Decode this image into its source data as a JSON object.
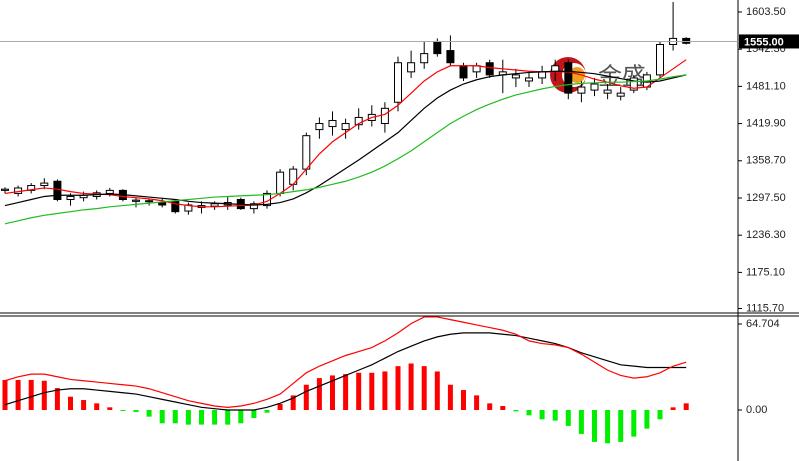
{
  "chart_data": [
    {
      "type": "candlestick",
      "open": [
        1310,
        1305,
        1310,
        1318,
        1325,
        1295,
        1298,
        1300,
        1305,
        1310,
        1292,
        1292,
        1290,
        1292,
        1276,
        1282,
        1284,
        1286,
        1295,
        1280,
        1285,
        1305,
        1320,
        1345,
        1410,
        1415,
        1410,
        1418,
        1425,
        1420,
        1455,
        1505,
        1520,
        1555,
        1540,
        1515,
        1505,
        1520,
        1500,
        1495,
        1490,
        1495,
        1505,
        1520,
        1470,
        1475,
        1470,
        1465,
        1475,
        1480,
        1500,
        1550,
        1560
      ],
      "high": [
        1315,
        1318,
        1322,
        1330,
        1328,
        1305,
        1308,
        1310,
        1314,
        1312,
        1298,
        1296,
        1298,
        1295,
        1290,
        1292,
        1292,
        1300,
        1298,
        1292,
        1310,
        1345,
        1350,
        1405,
        1430,
        1440,
        1428,
        1445,
        1450,
        1455,
        1530,
        1540,
        1555,
        1560,
        1565,
        1520,
        1520,
        1525,
        1525,
        1510,
        1505,
        1515,
        1525,
        1525,
        1490,
        1495,
        1485,
        1480,
        1500,
        1505,
        1555,
        1620,
        1562
      ],
      "low": [
        1305,
        1300,
        1305,
        1312,
        1292,
        1285,
        1292,
        1295,
        1300,
        1292,
        1282,
        1285,
        1282,
        1272,
        1270,
        1272,
        1278,
        1278,
        1278,
        1272,
        1280,
        1300,
        1310,
        1335,
        1395,
        1400,
        1395,
        1410,
        1415,
        1405,
        1440,
        1495,
        1510,
        1530,
        1515,
        1490,
        1495,
        1495,
        1470,
        1480,
        1480,
        1485,
        1490,
        1460,
        1455,
        1465,
        1460,
        1458,
        1470,
        1475,
        1495,
        1540,
        1550
      ],
      "close": [
        1312,
        1314,
        1318,
        1322,
        1295,
        1300,
        1302,
        1306,
        1310,
        1295,
        1294,
        1293,
        1286,
        1275,
        1286,
        1285,
        1288,
        1290,
        1280,
        1288,
        1305,
        1340,
        1345,
        1400,
        1420,
        1425,
        1420,
        1430,
        1435,
        1445,
        1520,
        1520,
        1535,
        1535,
        1520,
        1495,
        1515,
        1500,
        1505,
        1500,
        1495,
        1505,
        1515,
        1470,
        1480,
        1485,
        1475,
        1470,
        1495,
        1500,
        1550,
        1560,
        1552
      ],
      "up_color": "#ffffff",
      "down_color": "#000000",
      "edge_color": "#000000",
      "lines": [
        {
          "color": "#ff0000",
          "values": [
            1305,
            1308,
            1311,
            1314,
            1312,
            1308,
            1305,
            1304,
            1303,
            1300,
            1298,
            1296,
            1293,
            1288,
            1285,
            1283,
            1283,
            1284,
            1285,
            1286,
            1292,
            1305,
            1320,
            1345,
            1370,
            1390,
            1405,
            1420,
            1430,
            1435,
            1450,
            1470,
            1490,
            1505,
            1515,
            1515,
            1515,
            1512,
            1510,
            1508,
            1506,
            1505,
            1505,
            1505,
            1500,
            1493,
            1488,
            1482,
            1478,
            1480,
            1495,
            1510,
            1525
          ]
        },
        {
          "color": "#000000",
          "values": [
            1285,
            1290,
            1295,
            1300,
            1302,
            1302,
            1302,
            1303,
            1304,
            1303,
            1301,
            1299,
            1297,
            1295,
            1292,
            1290,
            1289,
            1288,
            1287,
            1286,
            1287,
            1290,
            1296,
            1306,
            1318,
            1332,
            1346,
            1360,
            1375,
            1390,
            1405,
            1425,
            1445,
            1462,
            1475,
            1485,
            1492,
            1497,
            1500,
            1502,
            1504,
            1505,
            1506,
            1506,
            1504,
            1502,
            1498,
            1494,
            1490,
            1488,
            1490,
            1495,
            1500
          ]
        },
        {
          "color": "#22bb22",
          "values": [
            1255,
            1260,
            1265,
            1269,
            1272,
            1275,
            1278,
            1280,
            1283,
            1285,
            1287,
            1289,
            1291,
            1293,
            1295,
            1297,
            1299,
            1300,
            1301,
            1302,
            1303,
            1305,
            1308,
            1311,
            1315,
            1320,
            1325,
            1332,
            1340,
            1350,
            1362,
            1375,
            1390,
            1405,
            1420,
            1432,
            1443,
            1452,
            1460,
            1467,
            1472,
            1477,
            1481,
            1484,
            1486,
            1487,
            1488,
            1488,
            1489,
            1490,
            1493,
            1497,
            1500
          ]
        }
      ],
      "ylim": [
        1108.3,
        1623.2
      ],
      "yticks": [
        {
          "value": 1603.5,
          "label": "1603.50"
        },
        {
          "value": 1542.3,
          "label": "1542.30"
        },
        {
          "value": 1481.1,
          "label": "1481.10"
        },
        {
          "value": 1419.9,
          "label": "1419.90"
        },
        {
          "value": 1358.7,
          "label": "1358.70"
        },
        {
          "value": 1297.5,
          "label": "1297.50"
        },
        {
          "value": 1236.3,
          "label": "1236.30"
        },
        {
          "value": 1175.1,
          "label": "1175.10"
        },
        {
          "value": 1115.7,
          "label": "1115.70"
        }
      ],
      "current_price": {
        "value": 1555,
        "label": "1555.00"
      },
      "watermark": "金盛"
    },
    {
      "type": "bar",
      "values": [
        22.6,
        22.6,
        22.6,
        22,
        16.5,
        10,
        7.5,
        5,
        2,
        -0.5,
        -1.5,
        -5,
        -10,
        -10,
        -11,
        -11,
        -11,
        -11,
        -10,
        -6,
        -2,
        4.5,
        11,
        19,
        24,
        26,
        27,
        28,
        28,
        29,
        33,
        35,
        33,
        29,
        19,
        15,
        11,
        5,
        3,
        -1,
        -4,
        -7,
        -8,
        -12,
        -18,
        -24,
        -25,
        -24,
        -20,
        -14,
        -7,
        2,
        5
      ],
      "up_color": "#ff0000",
      "down_color": "#00ee00",
      "lines": [
        {
          "color": "#000000",
          "values": [
            4,
            7,
            10,
            13,
            15,
            16,
            16,
            15,
            14,
            13,
            12,
            10,
            8,
            6,
            4,
            2,
            1,
            0,
            0,
            0,
            2,
            5,
            9,
            14,
            18,
            22,
            26,
            30,
            34,
            39,
            44,
            48,
            52,
            55,
            57,
            58,
            58,
            58,
            57,
            56,
            54,
            52,
            50,
            47,
            43,
            40,
            37,
            34,
            33,
            32,
            32,
            32,
            32
          ]
        },
        {
          "color": "#ff0000",
          "values": [
            22,
            25,
            27,
            27,
            25,
            23,
            22,
            21,
            20,
            19,
            18,
            16,
            13,
            10,
            7,
            5,
            3,
            2,
            3,
            5,
            8,
            12,
            20,
            28,
            33,
            37,
            41,
            44,
            47,
            52,
            58,
            65,
            70,
            70,
            68,
            66,
            64,
            62,
            60,
            57,
            52,
            50,
            49,
            47,
            42,
            36,
            30,
            26,
            24,
            25,
            28,
            33,
            36
          ]
        }
      ],
      "ylim": [
        -38.37,
        70.72
      ],
      "yticks": [
        64.704,
        {
          "value": 0,
          "label": "0.00"
        }
      ]
    }
  ]
}
